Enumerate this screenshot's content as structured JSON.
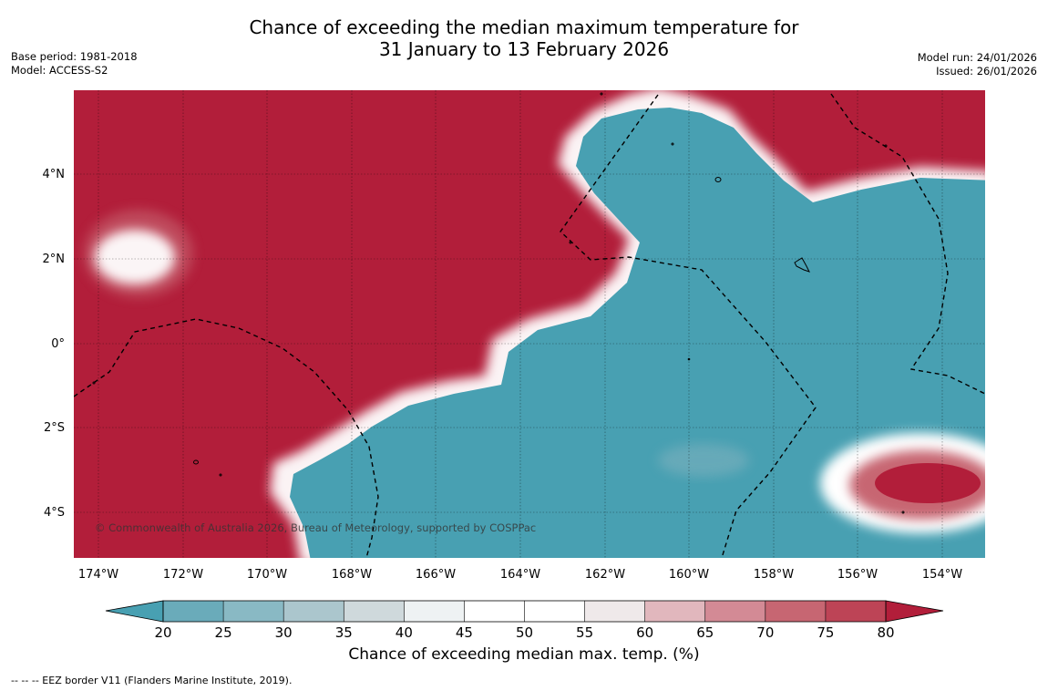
{
  "title": {
    "line1": "Chance of exceeding the median maximum temperature for",
    "line2": "31 January to 13 February 2026"
  },
  "meta_left": {
    "base_period": "Base period: 1981-2018",
    "model": "Model: ACCESS-S2"
  },
  "meta_right": {
    "model_run": "Model run: 24/01/2026",
    "issued": "Issued: 26/01/2026"
  },
  "map": {
    "lon_labels": [
      "174°W",
      "172°W",
      "170°W",
      "168°W",
      "166°W",
      "164°W",
      "162°W",
      "160°W",
      "158°W",
      "156°W",
      "154°W"
    ],
    "lat_labels": [
      "4°N",
      "2°N",
      "0°",
      "2°S",
      "4°S"
    ],
    "credit": "© Commonwealth of Australia 2026, Bureau of Meteorology, supported by COSPPac",
    "colors": {
      "high": "#b21e3a",
      "low": "#48a0b2"
    }
  },
  "colorbar": {
    "ticks": [
      "20",
      "25",
      "30",
      "35",
      "40",
      "45",
      "50",
      "55",
      "60",
      "65",
      "70",
      "75",
      "80"
    ],
    "colors": [
      "#6aabba",
      "#89b9c4",
      "#abc6cd",
      "#cfd9dc",
      "#eef2f3",
      "#ffffff",
      "#ffffff",
      "#efe9ea",
      "#e1b7bd",
      "#d38a95",
      "#c76672",
      "#bd4456"
    ],
    "under_color": "#48a0b2",
    "over_color": "#b21e3a",
    "label": "Chance of exceeding median max. temp. (%)"
  },
  "footnote": "--  --  -- EEZ border V11 (Flanders Marine Institute, 2019)."
}
